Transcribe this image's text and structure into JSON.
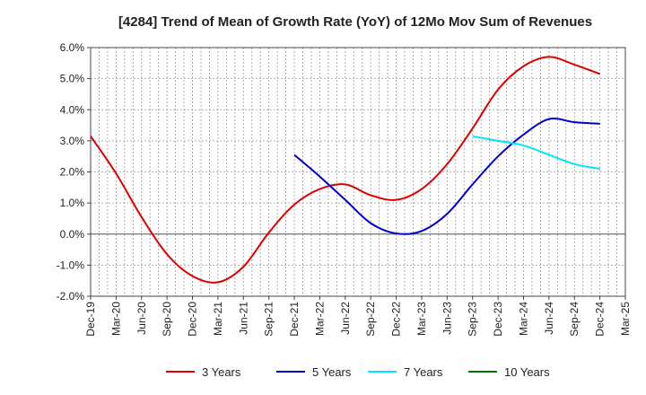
{
  "chart_data": {
    "type": "line",
    "title": "[4284]  Trend of Mean of Growth Rate (YoY) of 12Mo Mov Sum of Revenues",
    "xlabel": "",
    "ylabel": "",
    "categories": [
      "Dec-19",
      "Mar-20",
      "Jun-20",
      "Sep-20",
      "Dec-20",
      "Mar-21",
      "Jun-21",
      "Sep-21",
      "Dec-21",
      "Mar-22",
      "Jun-22",
      "Sep-22",
      "Dec-22",
      "Mar-23",
      "Jun-23",
      "Sep-23",
      "Dec-23",
      "Mar-24",
      "Jun-24",
      "Sep-24",
      "Dec-24",
      "Mar-25"
    ],
    "ylim": [
      -2.0,
      6.0
    ],
    "yticks": [
      -2.0,
      -1.0,
      0.0,
      1.0,
      2.0,
      3.0,
      4.0,
      5.0,
      6.0
    ],
    "ytick_labels": [
      "-2.0%",
      "-1.0%",
      "0.0%",
      "1.0%",
      "2.0%",
      "3.0%",
      "4.0%",
      "5.0%",
      "6.0%"
    ],
    "grid": true,
    "legend_position": "bottom",
    "series": [
      {
        "name": "3 Years",
        "color": "#dd0000",
        "values": [
          3.15,
          1.95,
          0.55,
          -0.65,
          -1.35,
          -1.55,
          -1.05,
          0.05,
          0.95,
          1.45,
          1.6,
          1.25,
          1.1,
          1.45,
          2.25,
          3.4,
          4.65,
          5.4,
          5.7,
          5.45,
          5.15,
          null
        ]
      },
      {
        "name": "5 Years",
        "color": "#0000cc",
        "values": [
          null,
          null,
          null,
          null,
          null,
          null,
          null,
          null,
          2.55,
          1.85,
          1.1,
          0.35,
          0.02,
          0.1,
          0.65,
          1.6,
          2.5,
          3.2,
          3.7,
          3.6,
          3.55,
          null
        ]
      },
      {
        "name": "7 Years",
        "color": "#00e5ff",
        "values": [
          null,
          null,
          null,
          null,
          null,
          null,
          null,
          null,
          null,
          null,
          null,
          null,
          null,
          null,
          null,
          3.15,
          3.0,
          2.85,
          2.55,
          2.25,
          2.1,
          null
        ]
      },
      {
        "name": "10 Years",
        "color": "#007700",
        "values": [
          null,
          null,
          null,
          null,
          null,
          null,
          null,
          null,
          null,
          null,
          null,
          null,
          null,
          null,
          null,
          null,
          null,
          null,
          null,
          null,
          null,
          null
        ]
      }
    ]
  }
}
